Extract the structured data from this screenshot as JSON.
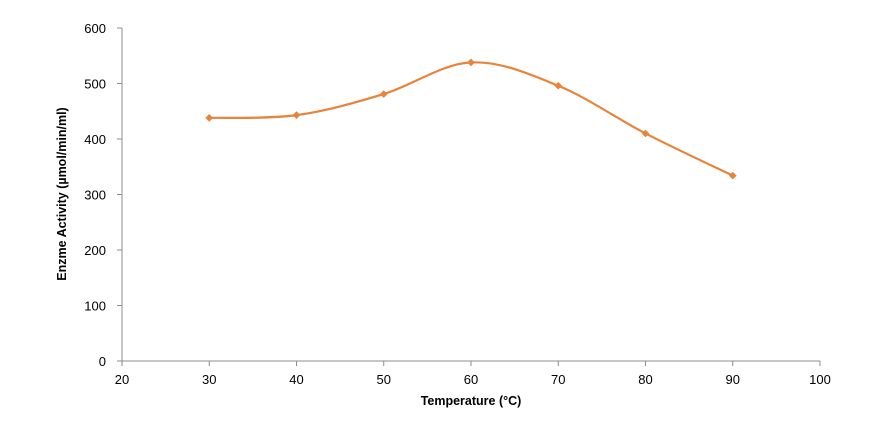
{
  "chart_data": {
    "type": "line",
    "title": "",
    "xlabel": "Temperature (°C)",
    "ylabel": "Enzme Activity (µmol/min/ml)",
    "xlim": [
      20,
      100
    ],
    "ylim": [
      0,
      600
    ],
    "xticks": [
      20,
      30,
      40,
      50,
      60,
      70,
      80,
      90,
      100
    ],
    "yticks": [
      0,
      100,
      200,
      300,
      400,
      500,
      600
    ],
    "grid": false,
    "legend": "none",
    "smooth": true,
    "series": [
      {
        "color": "#E8843A",
        "x": [
          30,
          40,
          50,
          60,
          70,
          80,
          90
        ],
        "y": [
          438,
          443,
          481,
          538,
          496,
          410,
          334
        ]
      }
    ]
  }
}
